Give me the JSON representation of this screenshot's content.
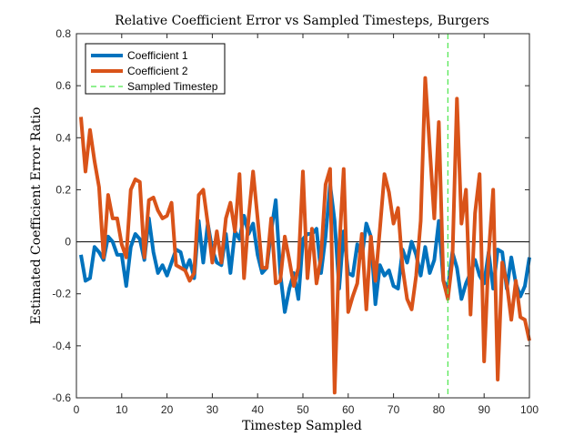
{
  "chart_data": {
    "type": "line",
    "title": "Relative Coefficient Error vs Sampled Timesteps, Burgers",
    "xlabel": "Timestep Sampled",
    "ylabel": "Estimated Coefficient Error Ratio",
    "xlim": [
      0,
      100
    ],
    "ylim": [
      -0.6,
      0.8
    ],
    "xticks": [
      0,
      10,
      20,
      30,
      40,
      50,
      60,
      70,
      80,
      90,
      100
    ],
    "yticks": [
      -0.6,
      -0.4,
      -0.2,
      0,
      0.2,
      0.4,
      0.6,
      0.8
    ],
    "xtick_labels": [
      "0",
      "10",
      "20",
      "30",
      "40",
      "50",
      "60",
      "70",
      "80",
      "90",
      "100"
    ],
    "ytick_labels": [
      "-0.6",
      "-0.4",
      "-0.2",
      "0",
      "0.2",
      "0.4",
      "0.6",
      "0.8"
    ],
    "grid": false,
    "legend_position": "top-left",
    "zero_line": true,
    "series": [
      {
        "name": "Coefficient 1",
        "color": "#0072BD",
        "x_start": 1,
        "values": [
          -0.05,
          -0.15,
          -0.14,
          -0.02,
          -0.04,
          -0.07,
          0.02,
          0.0,
          -0.05,
          -0.05,
          -0.17,
          -0.02,
          0.03,
          0.01,
          -0.07,
          0.09,
          -0.04,
          -0.12,
          -0.09,
          -0.13,
          -0.08,
          -0.03,
          -0.04,
          -0.11,
          -0.07,
          -0.14,
          0.08,
          -0.08,
          0.07,
          -0.03,
          -0.08,
          -0.09,
          0.03,
          -0.12,
          0.04,
          0.01,
          0.1,
          0.03,
          0.07,
          -0.05,
          -0.12,
          -0.1,
          0.04,
          0.16,
          -0.12,
          -0.27,
          -0.18,
          -0.12,
          -0.22,
          0.01,
          0.03,
          0.03,
          0.05,
          -0.12,
          0.02,
          0.22,
          0.08,
          -0.18,
          0.04,
          -0.12,
          -0.13,
          -0.01,
          -0.06,
          0.07,
          0.02,
          -0.24,
          -0.09,
          -0.13,
          -0.11,
          -0.17,
          -0.18,
          -0.03,
          -0.08,
          0.0,
          -0.05,
          -0.13,
          -0.02,
          -0.12,
          -0.07,
          0.08,
          -0.15,
          -0.18,
          -0.04,
          -0.1,
          -0.22,
          -0.16,
          -0.12,
          -0.07,
          -0.13,
          -0.16,
          -0.04,
          -0.18,
          -0.03,
          -0.04,
          -0.18,
          -0.06,
          -0.16,
          -0.21,
          -0.17,
          -0.06
        ]
      },
      {
        "name": "Coefficient 2",
        "color": "#D95319",
        "x_start": 1,
        "values": [
          0.48,
          0.27,
          0.43,
          0.31,
          0.21,
          -0.06,
          0.18,
          0.09,
          0.09,
          -0.01,
          -0.06,
          0.2,
          0.24,
          0.23,
          -0.06,
          0.16,
          0.17,
          0.12,
          0.09,
          0.1,
          0.15,
          -0.09,
          -0.1,
          -0.11,
          -0.15,
          -0.12,
          0.18,
          0.2,
          0.07,
          -0.08,
          0.04,
          -0.08,
          0.09,
          0.15,
          0.04,
          0.26,
          -0.14,
          0.09,
          0.27,
          0.09,
          -0.1,
          -0.1,
          0.09,
          -0.16,
          -0.15,
          0.02,
          -0.07,
          -0.17,
          -0.1,
          0.27,
          -0.14,
          0.05,
          -0.16,
          -0.06,
          0.22,
          0.28,
          -0.58,
          -0.03,
          0.28,
          -0.27,
          -0.21,
          -0.16,
          0.03,
          -0.26,
          0.02,
          -0.15,
          0.05,
          0.26,
          0.19,
          0.07,
          0.13,
          -0.1,
          -0.22,
          -0.26,
          -0.13,
          0.08,
          0.63,
          0.36,
          0.09,
          0.46,
          -0.15,
          -0.22,
          -0.07,
          0.55,
          0.07,
          0.2,
          -0.28,
          0.11,
          0.26,
          -0.46,
          -0.05,
          0.2,
          -0.53,
          -0.08,
          -0.16,
          -0.3,
          -0.15,
          -0.29,
          -0.3,
          -0.38
        ]
      }
    ],
    "sampled_timestep": {
      "name": "Sampled Timestep",
      "color": "#4CE64C",
      "x": 82
    }
  }
}
